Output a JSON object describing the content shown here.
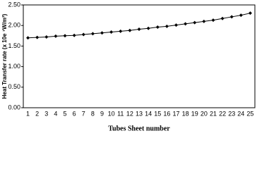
{
  "chart_data": {
    "type": "line",
    "x_label": "Tubes Sheet number",
    "y_label": "Heat Transfer rate (x 10e ⁷W/m²)",
    "categories": [
      1,
      2,
      3,
      4,
      5,
      6,
      7,
      8,
      9,
      10,
      11,
      12,
      13,
      14,
      15,
      16,
      17,
      18,
      19,
      20,
      21,
      22,
      23,
      24,
      25
    ],
    "series": [
      {
        "color": "#000000",
        "values": [
          1.7,
          1.71,
          1.72,
          1.74,
          1.75,
          1.76,
          1.78,
          1.8,
          1.82,
          1.84,
          1.86,
          1.88,
          1.91,
          1.93,
          1.96,
          1.98,
          2.01,
          2.04,
          2.07,
          2.1,
          2.13,
          2.17,
          2.21,
          2.25,
          2.3
        ]
      }
    ],
    "ylim": [
      0,
      2.5
    ],
    "yticks": [
      {
        "value": 0,
        "label": "0.00"
      },
      {
        "value": 0.5,
        "label": "0.50"
      },
      {
        "value": 1,
        "label": "1.00"
      },
      {
        "value": 1.5,
        "label": "1.50"
      },
      {
        "value": 2,
        "label": "2.00"
      },
      {
        "value": 2.5,
        "label": "2.50"
      }
    ],
    "grid": false
  }
}
